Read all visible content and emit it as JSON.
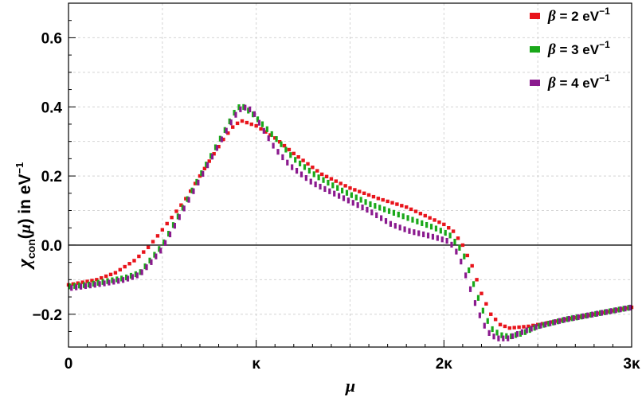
{
  "chart_data": {
    "type": "scatter",
    "xlabel": "μ",
    "ylabel": "χ_con(μ) in eV^−1",
    "ylabel_parts": {
      "symbol": "χ",
      "subscript": "con",
      "arg": "μ",
      "text": "in eV",
      "exponent": "−1"
    },
    "x_unit": "κ",
    "xlim": [
      0,
      3
    ],
    "ylim": [
      -0.295,
      0.7
    ],
    "x_ticks": [
      {
        "value": 0,
        "label": "0"
      },
      {
        "value": 1,
        "label": "κ"
      },
      {
        "value": 2,
        "label": "2κ"
      },
      {
        "value": 3,
        "label": "3κ"
      }
    ],
    "y_ticks": [
      {
        "value": -0.2,
        "label": "−0.2"
      },
      {
        "value": 0.0,
        "label": "0.0"
      },
      {
        "value": 0.2,
        "label": "0.2"
      },
      {
        "value": 0.4,
        "label": "0.4"
      },
      {
        "value": 0.6,
        "label": "0.6"
      }
    ],
    "grid": true,
    "zero_line": true,
    "legend_position": "top-right",
    "series": [
      {
        "name": "β = 2 eV⁻¹",
        "legend": {
          "beta": "β",
          "eq": " = 2 eV",
          "exp": "−1"
        },
        "color": "#e8141b",
        "points": [
          [
            0.0,
            -0.115
          ],
          [
            0.15,
            -0.1
          ],
          [
            0.25,
            -0.08
          ],
          [
            0.35,
            -0.045
          ],
          [
            0.42,
            -0.01
          ],
          [
            0.48,
            0.03
          ],
          [
            0.55,
            0.08
          ],
          [
            0.62,
            0.13
          ],
          [
            0.7,
            0.2
          ],
          [
            0.77,
            0.26
          ],
          [
            0.83,
            0.31
          ],
          [
            0.88,
            0.345
          ],
          [
            0.92,
            0.36
          ],
          [
            1.0,
            0.345
          ],
          [
            1.1,
            0.31
          ],
          [
            1.2,
            0.265
          ],
          [
            1.35,
            0.205
          ],
          [
            1.5,
            0.165
          ],
          [
            1.65,
            0.135
          ],
          [
            1.8,
            0.11
          ],
          [
            1.92,
            0.08
          ],
          [
            2.0,
            0.06
          ],
          [
            2.05,
            0.04
          ],
          [
            2.1,
            0.0
          ],
          [
            2.15,
            -0.06
          ],
          [
            2.2,
            -0.14
          ],
          [
            2.25,
            -0.2
          ],
          [
            2.3,
            -0.23
          ],
          [
            2.35,
            -0.24
          ],
          [
            2.45,
            -0.235
          ],
          [
            2.6,
            -0.22
          ],
          [
            2.8,
            -0.2
          ],
          [
            3.0,
            -0.18
          ]
        ]
      },
      {
        "name": "β = 3 eV⁻¹",
        "legend": {
          "beta": "β",
          "eq": " = 3 eV",
          "exp": "−1"
        },
        "color": "#1aa81a",
        "points": [
          [
            0.0,
            -0.12
          ],
          [
            0.1,
            -0.115
          ],
          [
            0.2,
            -0.105
          ],
          [
            0.3,
            -0.095
          ],
          [
            0.38,
            -0.08
          ],
          [
            0.44,
            -0.04
          ],
          [
            0.5,
            0.0
          ],
          [
            0.56,
            0.06
          ],
          [
            0.62,
            0.12
          ],
          [
            0.68,
            0.18
          ],
          [
            0.75,
            0.25
          ],
          [
            0.8,
            0.3
          ],
          [
            0.85,
            0.35
          ],
          [
            0.89,
            0.39
          ],
          [
            0.92,
            0.405
          ],
          [
            0.98,
            0.38
          ],
          [
            1.05,
            0.34
          ],
          [
            1.12,
            0.3
          ],
          [
            1.2,
            0.25
          ],
          [
            1.32,
            0.2
          ],
          [
            1.45,
            0.16
          ],
          [
            1.6,
            0.12
          ],
          [
            1.75,
            0.09
          ],
          [
            1.85,
            0.07
          ],
          [
            1.95,
            0.05
          ],
          [
            2.03,
            0.03
          ],
          [
            2.1,
            -0.02
          ],
          [
            2.15,
            -0.1
          ],
          [
            2.2,
            -0.18
          ],
          [
            2.25,
            -0.24
          ],
          [
            2.3,
            -0.26
          ],
          [
            2.35,
            -0.265
          ],
          [
            2.42,
            -0.255
          ],
          [
            2.5,
            -0.235
          ],
          [
            2.65,
            -0.215
          ],
          [
            2.85,
            -0.195
          ],
          [
            3.0,
            -0.18
          ]
        ]
      },
      {
        "name": "β = 4 eV⁻¹",
        "legend": {
          "beta": "β",
          "eq": " = 4 eV",
          "exp": "−1"
        },
        "color": "#8a1a8e",
        "points": [
          [
            0.0,
            -0.125
          ],
          [
            0.1,
            -0.118
          ],
          [
            0.2,
            -0.11
          ],
          [
            0.3,
            -0.1
          ],
          [
            0.38,
            -0.085
          ],
          [
            0.44,
            -0.05
          ],
          [
            0.5,
            -0.01
          ],
          [
            0.56,
            0.05
          ],
          [
            0.62,
            0.11
          ],
          [
            0.7,
            0.19
          ],
          [
            0.76,
            0.25
          ],
          [
            0.82,
            0.31
          ],
          [
            0.86,
            0.35
          ],
          [
            0.9,
            0.385
          ],
          [
            0.93,
            0.4
          ],
          [
            0.98,
            0.39
          ],
          [
            1.03,
            0.34
          ],
          [
            1.1,
            0.28
          ],
          [
            1.18,
            0.23
          ],
          [
            1.3,
            0.18
          ],
          [
            1.45,
            0.14
          ],
          [
            1.6,
            0.1
          ],
          [
            1.72,
            0.06
          ],
          [
            1.82,
            0.04
          ],
          [
            1.9,
            0.03
          ],
          [
            1.97,
            0.02
          ],
          [
            2.03,
            0.01
          ],
          [
            2.08,
            -0.03
          ],
          [
            2.13,
            -0.11
          ],
          [
            2.18,
            -0.19
          ],
          [
            2.23,
            -0.25
          ],
          [
            2.28,
            -0.27
          ],
          [
            2.34,
            -0.27
          ],
          [
            2.4,
            -0.255
          ],
          [
            2.5,
            -0.235
          ],
          [
            2.65,
            -0.215
          ],
          [
            2.85,
            -0.195
          ],
          [
            3.0,
            -0.18
          ]
        ]
      }
    ]
  }
}
